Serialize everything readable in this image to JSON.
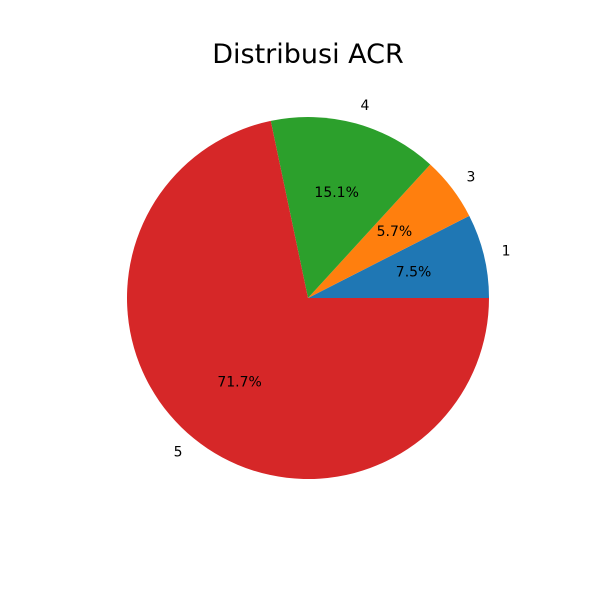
{
  "chart_data": {
    "type": "pie",
    "title": "Distribusi ACR",
    "start_angle_deg": 0,
    "direction": "counterclockwise",
    "slices": [
      {
        "label": "1",
        "percent": 7.5,
        "pct_text": "7.5%",
        "color": "#1f77b4"
      },
      {
        "label": "3",
        "percent": 5.7,
        "pct_text": "5.7%",
        "color": "#ff7f0e"
      },
      {
        "label": "4",
        "percent": 15.1,
        "pct_text": "15.1%",
        "color": "#2ca02c"
      },
      {
        "label": "5",
        "percent": 71.7,
        "pct_text": "71.7%",
        "color": "#d62728"
      }
    ]
  }
}
